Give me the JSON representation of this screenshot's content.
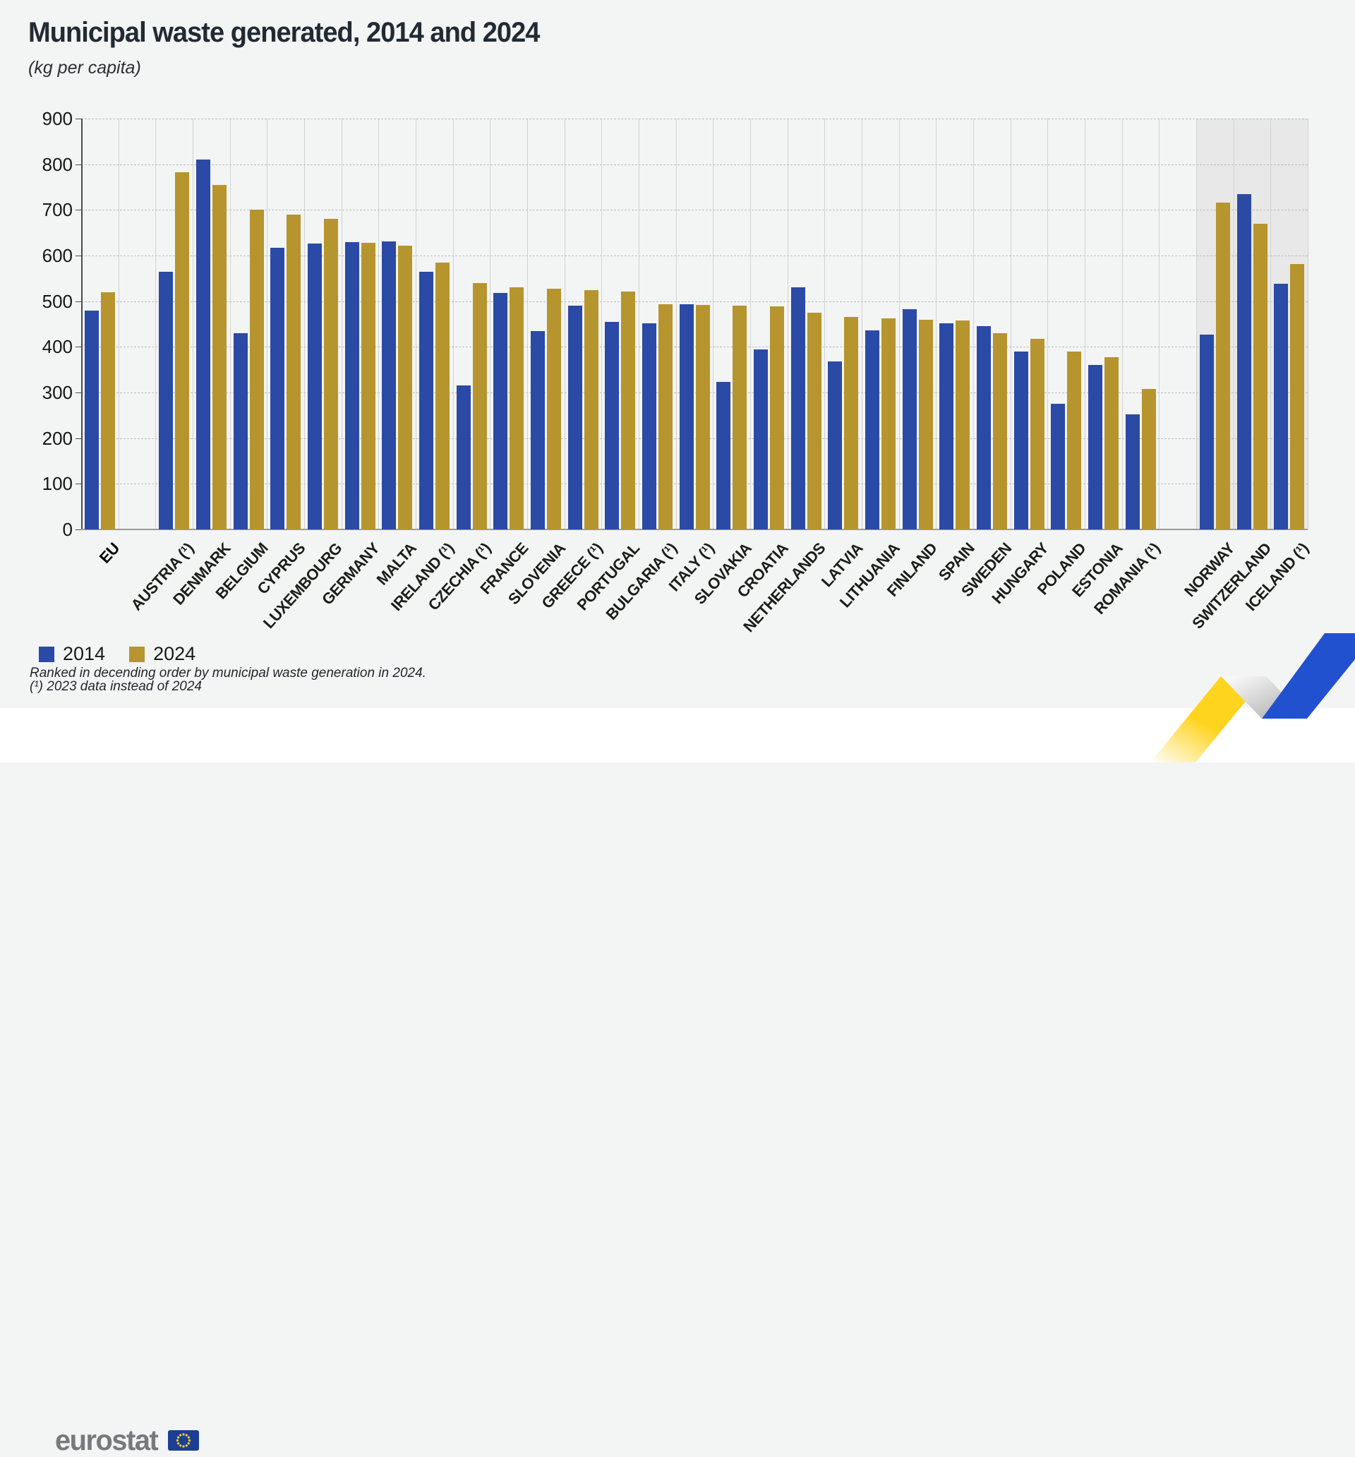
{
  "title": "Municipal waste generated, 2014 and 2024",
  "subtitle": "(kg per capita)",
  "legend": {
    "s2014": "2014",
    "s2024": "2024"
  },
  "footnotes": [
    "Ranked in decending order by municipal waste generation in 2024.",
    "(¹) 2023 data instead of 2024"
  ],
  "logo": {
    "text": "eurostat"
  },
  "colors": {
    "series_2014": "#2b4aa5",
    "series_2024": "#b6952e",
    "efta_shade": "#e8e8e8",
    "grid_dash": "#bfbfbf",
    "grid_vertical": "#d3d3d3",
    "ribbon_yellow": "#ffd41f",
    "ribbon_blue": "#2151cf",
    "flag_blue": "#1c3f94",
    "star_yellow": "#f8d12e",
    "logo_grey": "#77797c"
  },
  "chart_data": {
    "type": "bar",
    "title": "Municipal waste generated, 2014 and 2024",
    "units": "kg per capita",
    "xlabel": "",
    "ylabel": "kg per capita",
    "ylim": [
      0,
      900
    ],
    "ytick_step": 100,
    "yticks": [
      0,
      100,
      200,
      300,
      400,
      500,
      600,
      700,
      800,
      900
    ],
    "grid": true,
    "legend_position": "bottom-left",
    "series_names": [
      "2014",
      "2024"
    ],
    "sections": [
      {
        "name": "eu-aggregate",
        "highlight": false,
        "items": [
          {
            "label": "EU",
            "bold": true,
            "v2014": 480,
            "v2024": 520
          }
        ]
      },
      {
        "name": "eu-members",
        "highlight": false,
        "items": [
          {
            "label": "AUSTRIA (¹)",
            "v2014": 565,
            "v2024": 783
          },
          {
            "label": "DENMARK",
            "v2014": 810,
            "v2024": 755
          },
          {
            "label": "BELGIUM",
            "v2014": 430,
            "v2024": 700
          },
          {
            "label": "CYPRUS",
            "v2014": 617,
            "v2024": 690
          },
          {
            "label": "LUXEMBOURG",
            "v2014": 627,
            "v2024": 681
          },
          {
            "label": "GERMANY",
            "v2014": 630,
            "v2024": 628
          },
          {
            "label": "MALTA",
            "v2014": 631,
            "v2024": 622
          },
          {
            "label": "IRELAND (¹)",
            "v2014": 565,
            "v2024": 584
          },
          {
            "label": "CZECHIA (¹)",
            "v2014": 315,
            "v2024": 540
          },
          {
            "label": "FRANCE",
            "v2014": 518,
            "v2024": 531
          },
          {
            "label": "SLOVENIA",
            "v2014": 435,
            "v2024": 528
          },
          {
            "label": "GREECE (¹)",
            "v2014": 490,
            "v2024": 524
          },
          {
            "label": "PORTUGAL",
            "v2014": 455,
            "v2024": 521
          },
          {
            "label": "BULGARIA (¹)",
            "v2014": 452,
            "v2024": 494
          },
          {
            "label": "ITALY (¹)",
            "v2014": 493,
            "v2024": 491
          },
          {
            "label": "SLOVAKIA",
            "v2014": 323,
            "v2024": 490
          },
          {
            "label": "CROATIA",
            "v2014": 395,
            "v2024": 488
          },
          {
            "label": "NETHERLANDS",
            "v2014": 530,
            "v2024": 475
          },
          {
            "label": "LATVIA",
            "v2014": 368,
            "v2024": 466
          },
          {
            "label": "LITHUANIA",
            "v2014": 436,
            "v2024": 463
          },
          {
            "label": "FINLAND",
            "v2014": 483,
            "v2024": 460
          },
          {
            "label": "SPAIN",
            "v2014": 451,
            "v2024": 457
          },
          {
            "label": "SWEDEN",
            "v2014": 445,
            "v2024": 430
          },
          {
            "label": "HUNGARY",
            "v2014": 390,
            "v2024": 417
          },
          {
            "label": "POLAND",
            "v2014": 275,
            "v2024": 390
          },
          {
            "label": "ESTONIA",
            "v2014": 360,
            "v2024": 378
          },
          {
            "label": "ROMANIA (¹)",
            "v2014": 252,
            "v2024": 308
          }
        ]
      },
      {
        "name": "efta",
        "highlight": true,
        "items": [
          {
            "label": "NORWAY",
            "v2014": 427,
            "v2024": 716
          },
          {
            "label": "SWITZERLAND",
            "v2014": 734,
            "v2024": 670
          },
          {
            "label": "ICELAND (¹)",
            "v2014": 538,
            "v2024": 582
          }
        ]
      }
    ]
  }
}
